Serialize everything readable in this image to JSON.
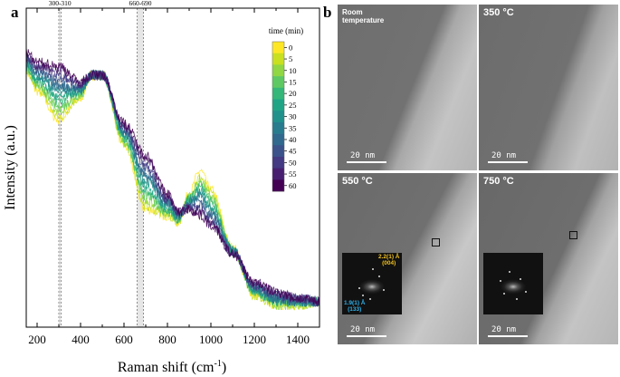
{
  "panel_a_label": "a",
  "panel_b_label": "b",
  "chart_data": {
    "type": "line",
    "xlabel": "Raman shift (cm",
    "xlabel_sup": "-1",
    "xlabel_end": ")",
    "ylabel": "Intensity (a.u.)",
    "xlim": [
      150,
      1500
    ],
    "ylim": [
      0,
      100
    ],
    "xticks": [
      200,
      400,
      600,
      800,
      1000,
      1200,
      1400
    ],
    "xtick_labels": [
      "200",
      "400",
      "600",
      "800",
      "1000",
      "1200",
      "1400"
    ],
    "y_ticks_shown": false,
    "bands": [
      {
        "label": "300-310",
        "range": [
          300,
          310
        ]
      },
      {
        "label": "660-690",
        "range": [
          660,
          690
        ]
      }
    ],
    "colorbar": {
      "title": "time (min)",
      "labels": [
        "0",
        "5",
        "10",
        "15",
        "20",
        "25",
        "30",
        "35",
        "40",
        "45",
        "50",
        "55",
        "60"
      ]
    },
    "x": [
      150,
      200,
      300,
      400,
      450,
      500,
      600,
      700,
      800,
      850,
      900,
      950,
      1000,
      1100,
      1200,
      1300,
      1400,
      1500
    ],
    "series": [
      {
        "name": "0",
        "color": "#fde725",
        "values": [
          80,
          74,
          65,
          72,
          79,
          79,
          57,
          37,
          35,
          33,
          42,
          49,
          43,
          25,
          10,
          7,
          7,
          8
        ]
      },
      {
        "name": "5",
        "color": "#c8e020",
        "values": [
          80,
          75,
          66,
          72,
          79,
          79,
          58,
          38,
          35,
          33,
          41,
          47,
          42,
          24,
          10,
          7,
          7,
          8
        ]
      },
      {
        "name": "10",
        "color": "#90d743",
        "values": [
          81,
          76,
          68,
          73,
          79,
          79,
          58,
          40,
          36,
          34,
          41,
          46,
          41,
          24,
          11,
          7,
          7,
          8
        ]
      },
      {
        "name": "15",
        "color": "#5ec962",
        "values": [
          81,
          76,
          69,
          73,
          79,
          79,
          59,
          41,
          36,
          34,
          40,
          45,
          40,
          24,
          11,
          8,
          8,
          8
        ]
      },
      {
        "name": "20",
        "color": "#35b779",
        "values": [
          82,
          77,
          71,
          74,
          79,
          79,
          59,
          43,
          37,
          34,
          40,
          44,
          39,
          24,
          11,
          8,
          8,
          8
        ]
      },
      {
        "name": "25",
        "color": "#20a486",
        "values": [
          82,
          78,
          72,
          74,
          79,
          79,
          60,
          44,
          37,
          34,
          40,
          43,
          38,
          24,
          12,
          8,
          8,
          8
        ]
      },
      {
        "name": "30",
        "color": "#21918c",
        "values": [
          83,
          79,
          74,
          74,
          79,
          79,
          61,
          46,
          38,
          35,
          39,
          42,
          37,
          24,
          12,
          9,
          8,
          8
        ]
      },
      {
        "name": "35",
        "color": "#287c8e",
        "values": [
          83,
          79,
          75,
          75,
          79,
          79,
          61,
          47,
          39,
          35,
          39,
          41,
          36,
          24,
          12,
          9,
          8,
          8
        ]
      },
      {
        "name": "40",
        "color": "#31688e",
        "values": [
          84,
          80,
          76,
          75,
          79,
          79,
          62,
          48,
          39,
          35,
          39,
          40,
          35,
          24,
          13,
          9,
          8,
          8
        ]
      },
      {
        "name": "45",
        "color": "#3b528b",
        "values": [
          84,
          81,
          78,
          76,
          79,
          79,
          62,
          50,
          40,
          35,
          38,
          38,
          34,
          23,
          13,
          10,
          9,
          8
        ]
      },
      {
        "name": "50",
        "color": "#443983",
        "values": [
          85,
          82,
          79,
          76,
          79,
          79,
          63,
          51,
          40,
          36,
          38,
          37,
          33,
          23,
          13,
          10,
          9,
          8
        ]
      },
      {
        "name": "55",
        "color": "#481f70",
        "values": [
          85,
          82,
          81,
          76,
          79,
          79,
          63,
          53,
          41,
          36,
          37,
          36,
          32,
          23,
          14,
          11,
          9,
          8
        ]
      },
      {
        "name": "60",
        "color": "#440154",
        "values": [
          86,
          83,
          82,
          77,
          79,
          79,
          64,
          54,
          42,
          36,
          37,
          35,
          32,
          23,
          14,
          11,
          9,
          8
        ]
      }
    ]
  },
  "tem_panels": [
    {
      "caption_line1": "Room",
      "caption_line2": "temperature",
      "scale": "20  nm"
    },
    {
      "caption": "350 °C",
      "scale": "20  nm"
    },
    {
      "caption": "550 °C",
      "scale": "20  nm"
    },
    {
      "caption": "750 °C",
      "scale": "20  nm"
    }
  ],
  "fft_annotations": {
    "yellow_d": "2.2(1) Å",
    "yellow_hkl": "(004)",
    "blue_d": "1.9(1) Å",
    "blue_hkl": "(133)",
    "yellow_color": "#f0c020",
    "blue_color": "#30b0e8"
  }
}
